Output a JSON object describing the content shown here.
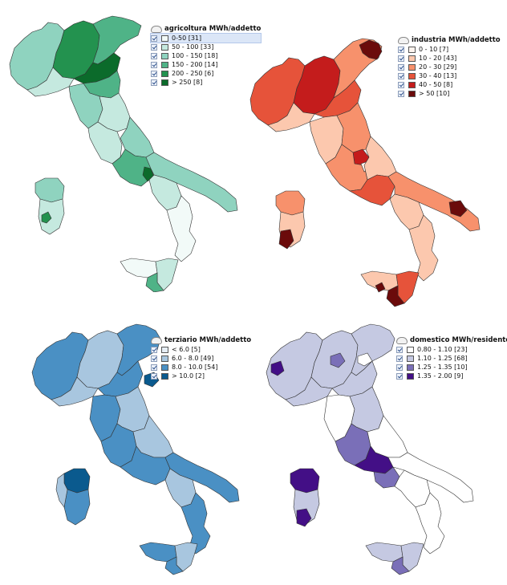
{
  "maps": [
    {
      "key": "agricoltura",
      "title": "agricoltura MWh/addetto",
      "classes": [
        {
          "label": "0-50 [31]",
          "color": "#f2faf8"
        },
        {
          "label": "50 - 100  [33]",
          "color": "#c5e9df"
        },
        {
          "label": "100 - 150  [18]",
          "color": "#8fd3bf"
        },
        {
          "label": "150 - 200  [14]",
          "color": "#4fb387"
        },
        {
          "label": "200 - 250  [6]",
          "color": "#23924f"
        },
        {
          "label": "> 250 [8]",
          "color": "#0b6b2b"
        }
      ]
    },
    {
      "key": "industria",
      "title": "industria MWh/addetto",
      "classes": [
        {
          "label": "0 - 10  [7]",
          "color": "#fff4ee"
        },
        {
          "label": "10 - 20  [43]",
          "color": "#fcc8ae"
        },
        {
          "label": "20 - 30  [29]",
          "color": "#f7916c"
        },
        {
          "label": "30 - 40  [13]",
          "color": "#e6533a"
        },
        {
          "label": "40 - 50  [8]",
          "color": "#c41c1c"
        },
        {
          "label": "> 50 [10]",
          "color": "#6b0b0b"
        }
      ]
    },
    {
      "key": "terziario",
      "title": "terziario MWh/addetto",
      "classes": [
        {
          "label": "< 6.0  [5]",
          "color": "#e6eef6"
        },
        {
          "label": "6.0 - 8.0  [49]",
          "color": "#a8c6df"
        },
        {
          "label": "8.0 - 10.0  [54]",
          "color": "#4a90c4"
        },
        {
          "label": "> 10.0  [2]",
          "color": "#0a5a8e"
        }
      ]
    },
    {
      "key": "domestico",
      "title": "domestico MWh/residente",
      "classes": [
        {
          "label": "0.80 - 1.10  [23]",
          "color": "#ffffff"
        },
        {
          "label": "1.10 - 1.25  [68]",
          "color": "#c5c9e2"
        },
        {
          "label": "1.25 - 1.35  [10]",
          "color": "#7a6fb8"
        },
        {
          "label": "1.35 - 2.00  [9]",
          "color": "#430f86"
        }
      ]
    }
  ]
}
